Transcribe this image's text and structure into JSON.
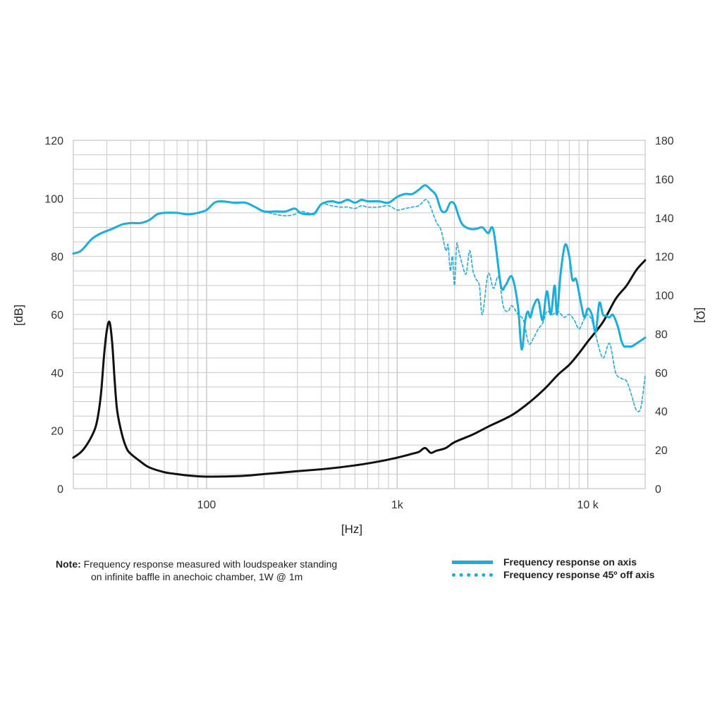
{
  "chart_data": {
    "type": "line",
    "title": "",
    "xlabel": "[Hz]",
    "ylabel_left": "[dB]",
    "ylabel_right": "[Ω]",
    "x_scale": "log",
    "xlim": [
      20,
      20000
    ],
    "ylim_left": [
      0,
      120
    ],
    "ylim_right": [
      0,
      180
    ],
    "x_ticks": [
      {
        "value": 100,
        "label": "100"
      },
      {
        "value": 1000,
        "label": "1k"
      },
      {
        "value": 10000,
        "label": "10 k"
      }
    ],
    "y_ticks_left": [
      0,
      20,
      40,
      60,
      80,
      100,
      120
    ],
    "y_ticks_right": [
      0,
      20,
      40,
      60,
      80,
      100,
      120,
      140,
      160,
      180
    ],
    "grid": true,
    "colors": {
      "response": "#1aaee0",
      "impedance": "#111111",
      "grid": "#c8c8c8"
    },
    "series": [
      {
        "name": "Frequency response on axis",
        "axis": "left",
        "style": "solid",
        "x": [
          20,
          22,
          25,
          28,
          32,
          36,
          40,
          45,
          50,
          55,
          60,
          70,
          80,
          90,
          100,
          110,
          120,
          140,
          160,
          180,
          200,
          230,
          260,
          290,
          310,
          340,
          370,
          400,
          450,
          500,
          550,
          600,
          650,
          700,
          800,
          900,
          1000,
          1100,
          1200,
          1300,
          1400,
          1500,
          1600,
          1700,
          1800,
          1900,
          2000,
          2100,
          2200,
          2400,
          2600,
          2800,
          3000,
          3200,
          3500,
          3700,
          4000,
          4300,
          4500,
          4700,
          4850,
          5000,
          5200,
          5500,
          5800,
          6100,
          6400,
          6700,
          6900,
          7200,
          7600,
          8000,
          8300,
          8700,
          9200,
          9600,
          10000,
          10500,
          11000,
          11500,
          12000,
          12500,
          13000,
          13500,
          14000,
          14500,
          15000,
          15500,
          16000,
          17000,
          18000,
          19000,
          20000
        ],
        "y": [
          81,
          82,
          86,
          88,
          89.5,
          91,
          91.5,
          91.5,
          92.5,
          94.5,
          95,
          95,
          94.5,
          95,
          96,
          98.5,
          99,
          98.5,
          98.5,
          97,
          95.5,
          95.5,
          95.5,
          96.5,
          95,
          94.5,
          95,
          98,
          99,
          98.5,
          99.5,
          98.5,
          99.5,
          99,
          99,
          98.5,
          100.5,
          101.5,
          101.5,
          103,
          104.5,
          103,
          101,
          96,
          95.5,
          98.5,
          98,
          94,
          91,
          89.5,
          89.5,
          90,
          88,
          89,
          70,
          70,
          73,
          63,
          48,
          58,
          61,
          59,
          63,
          65,
          58,
          68,
          60,
          70,
          60,
          74,
          84,
          80,
          72,
          72,
          64,
          59,
          62,
          60,
          54,
          64,
          60,
          59.5,
          59,
          60,
          58,
          55,
          51,
          49,
          49,
          49,
          50,
          51,
          52
        ]
      },
      {
        "name": "Frequency response 45º off axis",
        "axis": "left",
        "style": "dashed",
        "x": [
          200,
          230,
          260,
          290,
          310,
          340,
          370,
          400,
          450,
          500,
          550,
          600,
          650,
          700,
          800,
          900,
          1000,
          1100,
          1200,
          1300,
          1400,
          1450,
          1500,
          1600,
          1700,
          1800,
          1850,
          1900,
          1950,
          2000,
          2050,
          2100,
          2200,
          2300,
          2400,
          2500,
          2600,
          2700,
          2800,
          3000,
          3200,
          3400,
          3600,
          3800,
          4000,
          4300,
          4600,
          4900,
          5200,
          5500,
          5800,
          6100,
          6500,
          7000,
          7500,
          8000,
          8500,
          9000,
          9500,
          10000,
          10500,
          11000,
          12000,
          13000,
          14000,
          15000,
          16000,
          17000,
          18000,
          19000,
          20000
        ],
        "y": [
          95.5,
          94.5,
          94,
          94.5,
          95.5,
          95,
          94.5,
          98,
          97.5,
          97,
          97,
          96.5,
          97.5,
          97,
          97,
          97.5,
          96,
          96.5,
          97,
          97.5,
          99.5,
          99,
          97,
          92,
          89,
          82,
          84,
          75,
          80,
          70,
          84,
          82,
          77,
          74,
          82,
          75,
          72,
          70,
          60,
          74,
          69,
          73,
          63,
          61,
          63,
          60,
          58,
          50,
          52,
          55,
          57,
          61,
          60,
          61,
          59,
          60,
          58,
          55,
          58,
          60,
          58,
          53,
          45,
          50,
          40,
          38,
          37,
          32,
          27,
          28,
          39
        ]
      },
      {
        "name": "Impedance",
        "axis": "right",
        "style": "solid",
        "x": [
          20,
          22,
          24,
          26,
          27,
          28,
          29,
          30,
          31,
          32,
          33,
          34,
          36,
          38,
          40,
          45,
          50,
          60,
          70,
          80,
          100,
          150,
          200,
          300,
          400,
          500,
          600,
          700,
          800,
          900,
          1000,
          1100,
          1200,
          1300,
          1400,
          1500,
          1600,
          1800,
          2000,
          2500,
          3000,
          4000,
          5000,
          6000,
          7000,
          8000,
          9000,
          10000,
          12000,
          14000,
          16000,
          18000,
          20000
        ],
        "y": [
          16,
          19,
          24,
          31,
          38,
          50,
          69,
          82,
          86,
          75,
          55,
          40,
          28,
          21,
          18,
          14,
          11,
          8.5,
          7.5,
          6.8,
          6.2,
          6.5,
          7.5,
          9,
          10,
          11,
          12,
          13,
          14,
          15,
          16,
          17,
          18,
          19,
          21,
          18.5,
          19.5,
          21,
          24,
          28,
          32,
          38,
          45,
          52,
          59,
          64,
          70,
          76,
          86,
          98,
          105,
          113,
          118
        ]
      }
    ]
  },
  "note": {
    "label": "Note:",
    "line1": "Frequency response measured with loudspeaker standing",
    "line2": "on infinite baffle in anechoic chamber, 1W @ 1m"
  },
  "legend": {
    "on_axis": "Frequency response on axis",
    "off_axis": "Frequency response 45º off axis"
  }
}
